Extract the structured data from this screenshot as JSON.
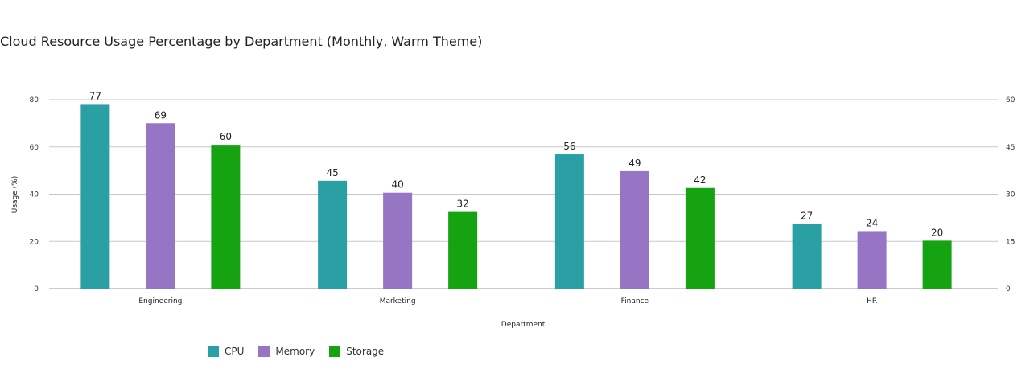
{
  "chart_data": {
    "type": "bar",
    "title": "Cloud Resource Usage Percentage by Department (Monthly, Warm Theme)",
    "xlabel": "Department",
    "ylabel": "Usage (%)",
    "categories": [
      "Engineering",
      "Marketing",
      "Finance",
      "HR"
    ],
    "series": [
      {
        "name": "CPU",
        "color": "#2aa0a4",
        "values": [
          77,
          45,
          56,
          27
        ]
      },
      {
        "name": "Memory",
        "color": "#9575c4",
        "values": [
          69,
          40,
          49,
          24
        ]
      },
      {
        "name": "Storage",
        "color": "#16a312",
        "values": [
          60,
          32,
          42,
          20
        ]
      }
    ],
    "ylim": [
      0,
      80
    ],
    "yticks": [
      "0",
      "20",
      "40",
      "60",
      "80"
    ],
    "y2lim": [
      0,
      60
    ],
    "y2ticks": [
      "0",
      "15",
      "30",
      "45",
      "60"
    ],
    "grid": true,
    "legend_position": "bottom-left"
  }
}
